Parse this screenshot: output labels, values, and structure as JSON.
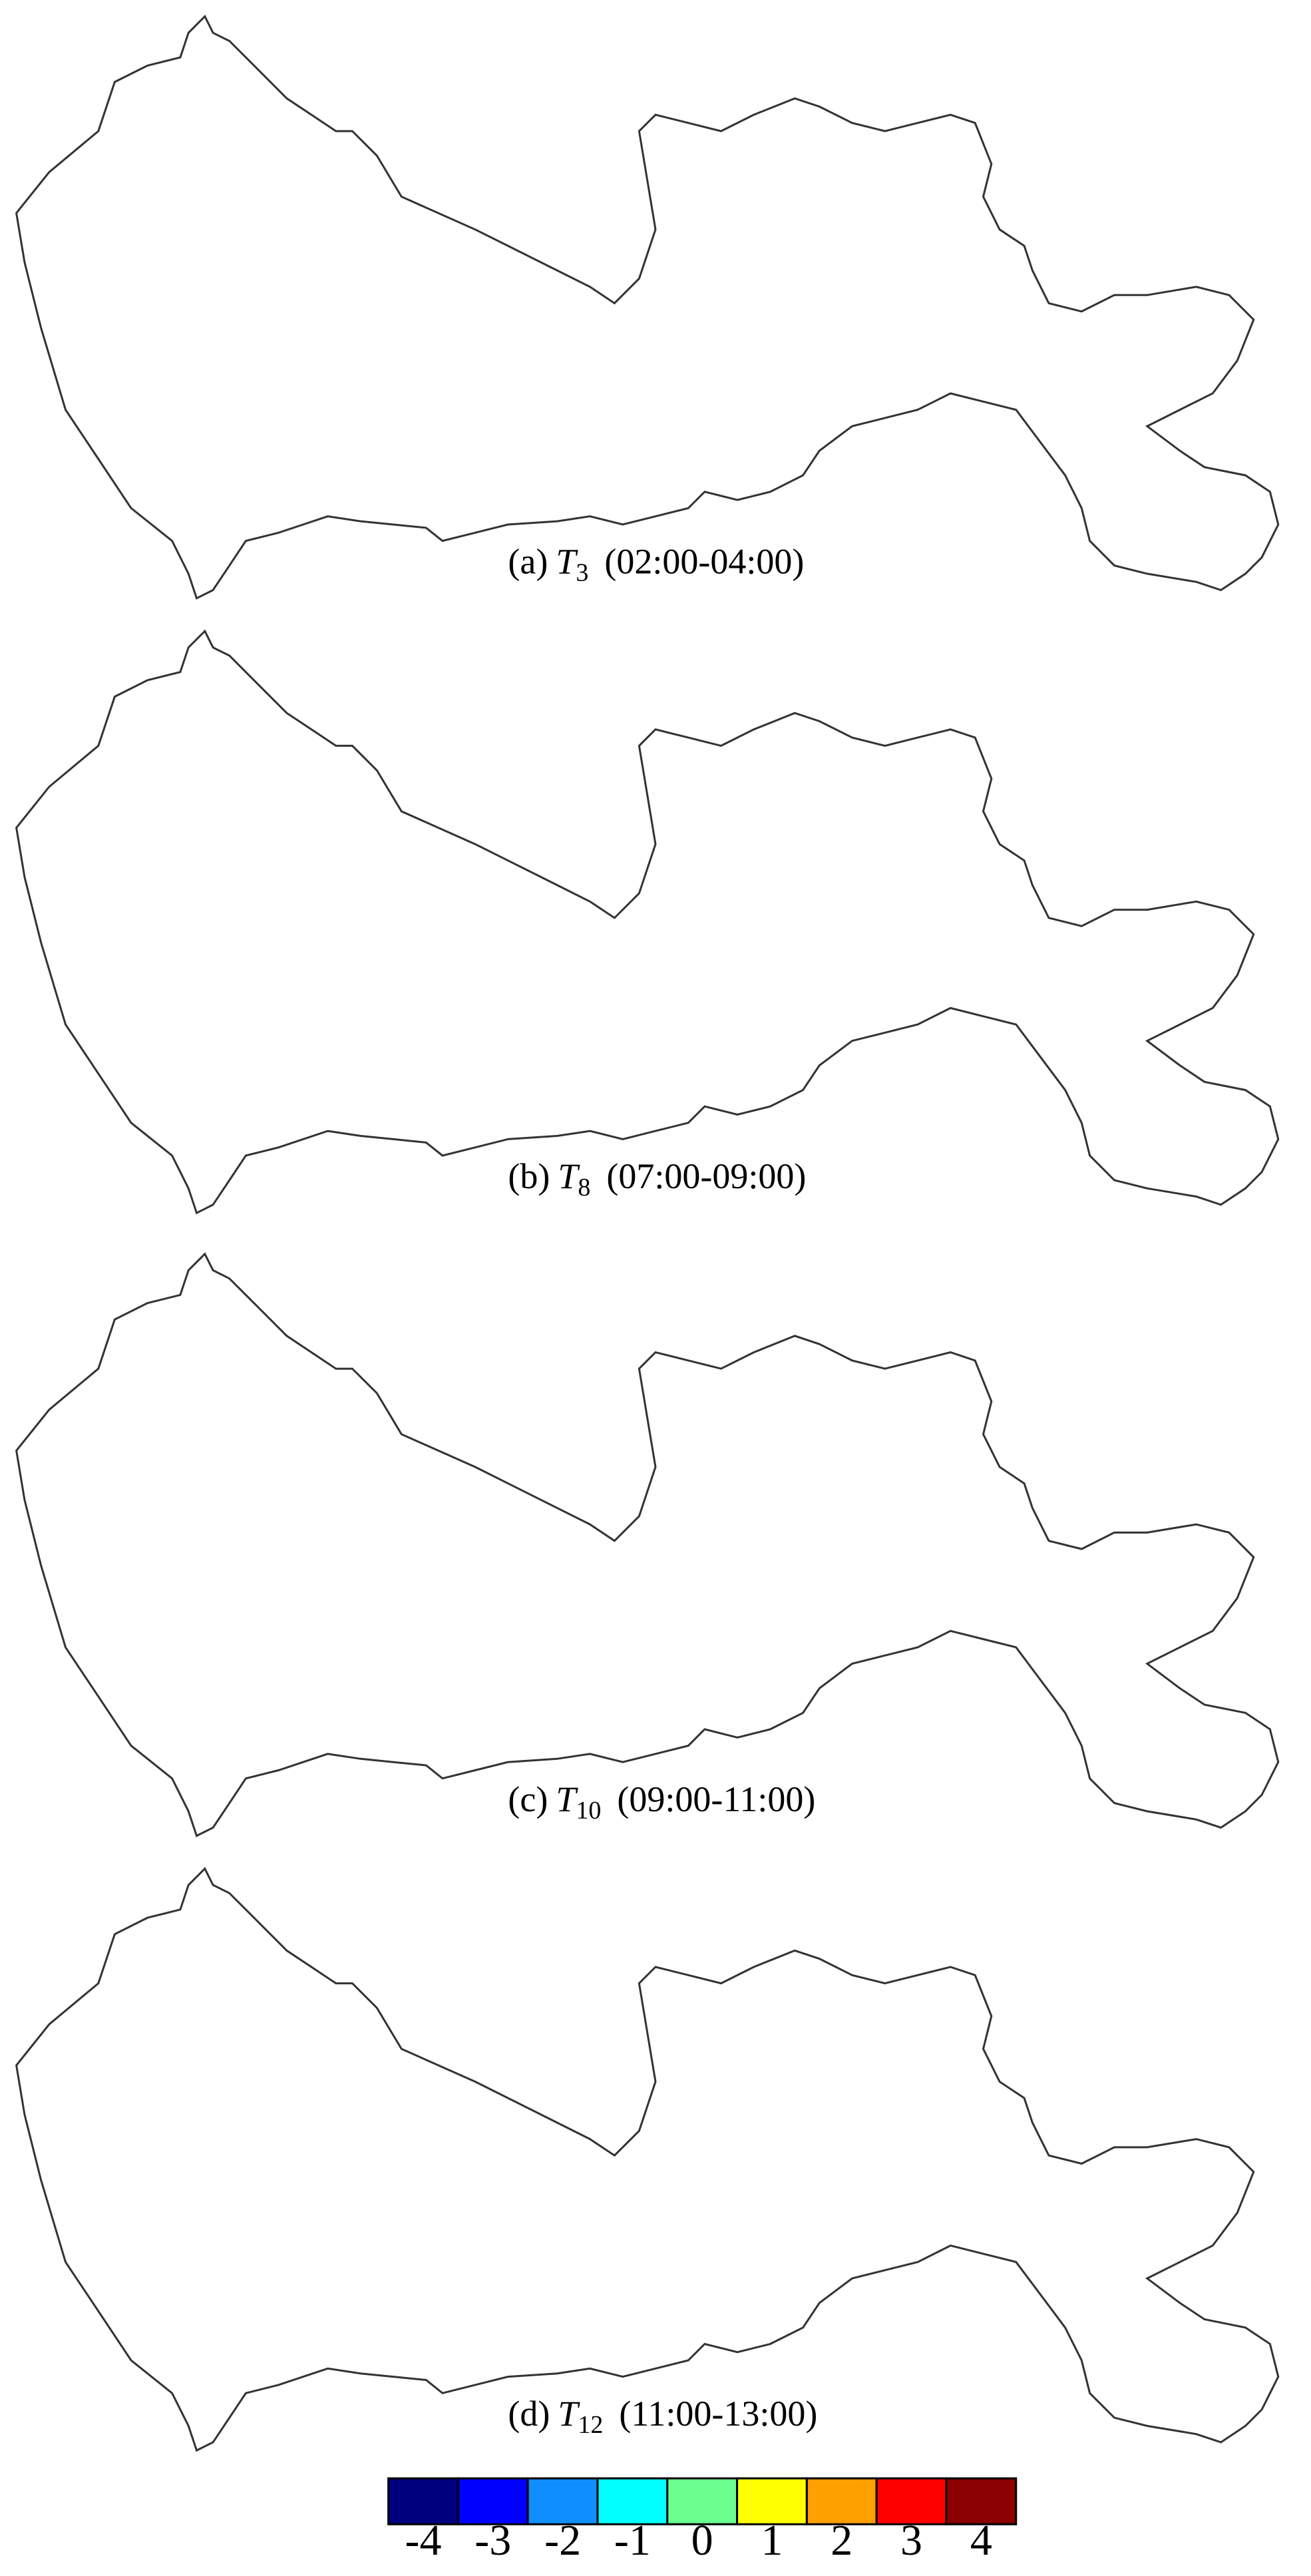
{
  "panels": [
    {
      "label": "(a)",
      "symbol": "T",
      "subscript": "3",
      "period": "(02:00-04:00)"
    },
    {
      "label": "(b)",
      "symbol": "T",
      "subscript": "8",
      "period": "(07:00-09:00)"
    },
    {
      "label": "(c)",
      "symbol": "T",
      "subscript": "10",
      "period": "(09:00-11:00)"
    },
    {
      "label": "(d)",
      "symbol": "T",
      "subscript": "12",
      "period": "(11:00-13:00)"
    }
  ],
  "colorbar": {
    "colors": [
      "#00007f",
      "#0000ff",
      "#0f8fff",
      "#00ffff",
      "#6bff8f",
      "#ffff00",
      "#ff9f00",
      "#ff0000",
      "#8b0000"
    ],
    "ticks": [
      -4,
      -3,
      -2,
      -1,
      0,
      1,
      2,
      3,
      4
    ]
  }
}
